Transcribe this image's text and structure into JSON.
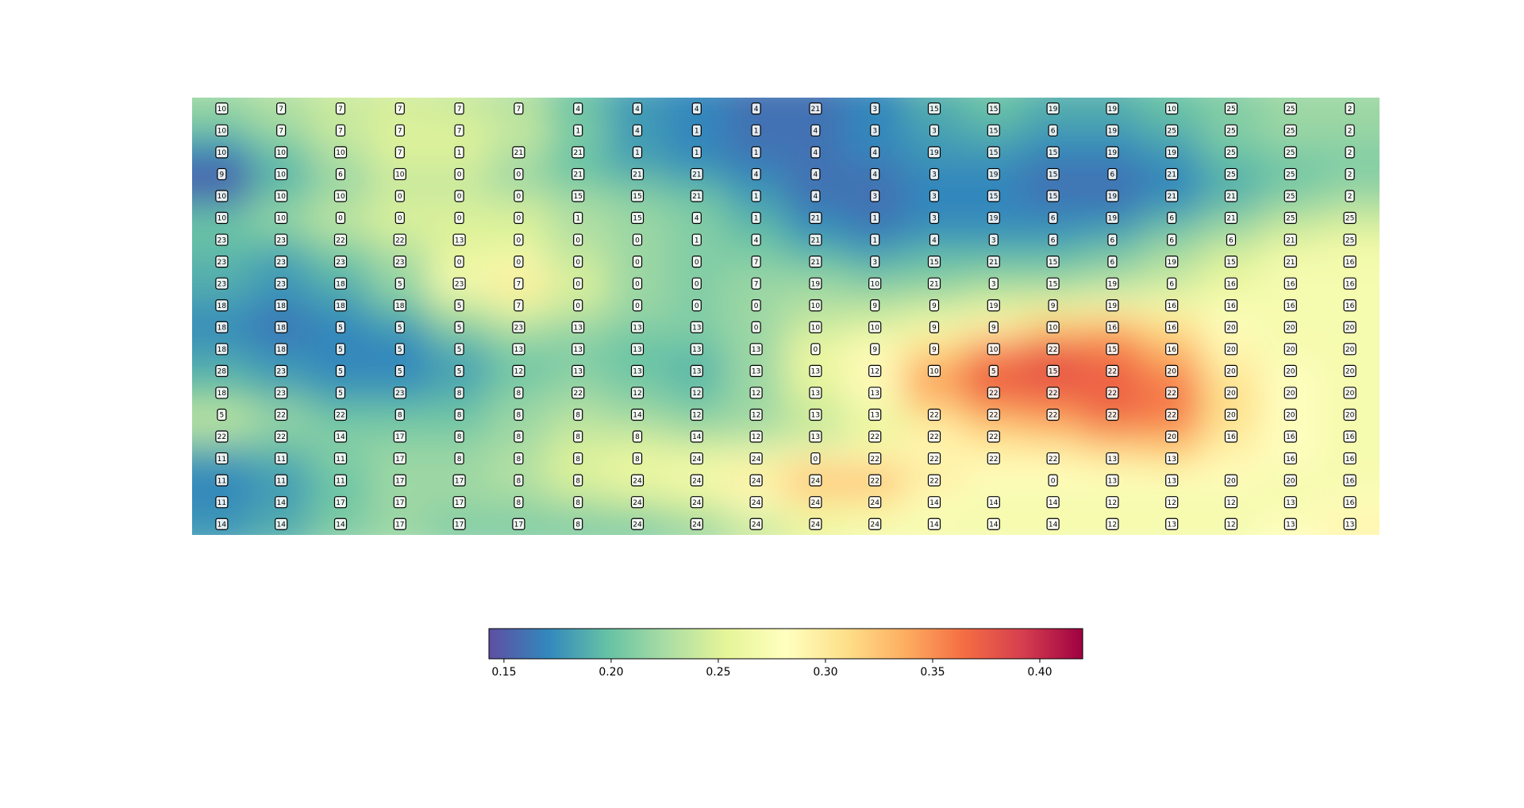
{
  "chart_data": {
    "type": "heatmap",
    "title": "",
    "xlabel": "",
    "ylabel": "",
    "grid": false,
    "cmap": "Spectral_r",
    "cmap_stops": [
      "#5e4fa2",
      "#3288bd",
      "#66c2a5",
      "#abdda4",
      "#e6f598",
      "#ffffbf",
      "#fee08b",
      "#fdae61",
      "#f46d43",
      "#d53e4f",
      "#9e0142"
    ],
    "color_range": [
      0.143,
      0.42
    ],
    "colorbar": {
      "orientation": "horizontal",
      "location": "bottom",
      "ticks": [
        0.15,
        0.2,
        0.25,
        0.3,
        0.35,
        0.4
      ],
      "tick_labels": [
        "0.15",
        "0.20",
        "0.25",
        "0.30",
        "0.35",
        "0.40"
      ]
    },
    "value_grid": [
      [
        0.22,
        0.23,
        0.24,
        0.245,
        0.24,
        0.23,
        0.2,
        0.18,
        0.17,
        0.16,
        0.16,
        0.17,
        0.19,
        0.2,
        0.19,
        0.19,
        0.2,
        0.21,
        0.22,
        0.22
      ],
      [
        0.2,
        0.22,
        0.24,
        0.25,
        0.25,
        0.24,
        0.21,
        0.18,
        0.17,
        0.16,
        0.16,
        0.17,
        0.18,
        0.19,
        0.18,
        0.18,
        0.19,
        0.21,
        0.22,
        0.22
      ],
      [
        0.17,
        0.2,
        0.23,
        0.25,
        0.25,
        0.23,
        0.2,
        0.18,
        0.17,
        0.16,
        0.16,
        0.17,
        0.18,
        0.18,
        0.17,
        0.17,
        0.18,
        0.2,
        0.21,
        0.21
      ],
      [
        0.15,
        0.19,
        0.22,
        0.24,
        0.24,
        0.22,
        0.2,
        0.19,
        0.18,
        0.17,
        0.16,
        0.16,
        0.17,
        0.17,
        0.16,
        0.16,
        0.17,
        0.19,
        0.2,
        0.21
      ],
      [
        0.16,
        0.2,
        0.22,
        0.24,
        0.24,
        0.23,
        0.22,
        0.21,
        0.2,
        0.18,
        0.16,
        0.16,
        0.17,
        0.17,
        0.16,
        0.16,
        0.17,
        0.19,
        0.21,
        0.22
      ],
      [
        0.2,
        0.22,
        0.24,
        0.25,
        0.25,
        0.25,
        0.23,
        0.22,
        0.21,
        0.19,
        0.17,
        0.16,
        0.17,
        0.17,
        0.17,
        0.17,
        0.19,
        0.21,
        0.23,
        0.24
      ],
      [
        0.2,
        0.2,
        0.22,
        0.24,
        0.25,
        0.25,
        0.23,
        0.22,
        0.21,
        0.2,
        0.18,
        0.17,
        0.18,
        0.18,
        0.18,
        0.19,
        0.21,
        0.23,
        0.25,
        0.26
      ],
      [
        0.19,
        0.18,
        0.2,
        0.22,
        0.26,
        0.27,
        0.24,
        0.22,
        0.21,
        0.21,
        0.2,
        0.19,
        0.2,
        0.2,
        0.2,
        0.21,
        0.23,
        0.25,
        0.27,
        0.27
      ],
      [
        0.19,
        0.18,
        0.19,
        0.22,
        0.27,
        0.3,
        0.25,
        0.22,
        0.21,
        0.22,
        0.22,
        0.21,
        0.21,
        0.22,
        0.22,
        0.23,
        0.24,
        0.26,
        0.27,
        0.27
      ],
      [
        0.18,
        0.17,
        0.18,
        0.2,
        0.24,
        0.26,
        0.24,
        0.22,
        0.21,
        0.22,
        0.23,
        0.23,
        0.24,
        0.25,
        0.26,
        0.27,
        0.27,
        0.27,
        0.27,
        0.27
      ],
      [
        0.17,
        0.16,
        0.17,
        0.18,
        0.21,
        0.23,
        0.22,
        0.21,
        0.21,
        0.22,
        0.24,
        0.25,
        0.27,
        0.29,
        0.32,
        0.33,
        0.31,
        0.28,
        0.27,
        0.27
      ],
      [
        0.18,
        0.17,
        0.17,
        0.17,
        0.19,
        0.21,
        0.21,
        0.2,
        0.2,
        0.22,
        0.26,
        0.28,
        0.31,
        0.35,
        0.37,
        0.36,
        0.33,
        0.29,
        0.27,
        0.27
      ],
      [
        0.19,
        0.18,
        0.17,
        0.17,
        0.18,
        0.2,
        0.21,
        0.2,
        0.19,
        0.22,
        0.26,
        0.29,
        0.34,
        0.37,
        0.38,
        0.37,
        0.35,
        0.3,
        0.28,
        0.27
      ],
      [
        0.2,
        0.19,
        0.18,
        0.18,
        0.19,
        0.21,
        0.22,
        0.21,
        0.2,
        0.22,
        0.25,
        0.28,
        0.34,
        0.37,
        0.37,
        0.37,
        0.36,
        0.31,
        0.28,
        0.27
      ],
      [
        0.24,
        0.22,
        0.2,
        0.2,
        0.2,
        0.22,
        0.23,
        0.22,
        0.21,
        0.22,
        0.24,
        0.26,
        0.31,
        0.34,
        0.35,
        0.37,
        0.36,
        0.31,
        0.28,
        0.27
      ],
      [
        0.22,
        0.21,
        0.21,
        0.21,
        0.21,
        0.22,
        0.24,
        0.24,
        0.23,
        0.23,
        0.24,
        0.26,
        0.29,
        0.31,
        0.32,
        0.34,
        0.34,
        0.3,
        0.28,
        0.27
      ],
      [
        0.18,
        0.19,
        0.21,
        0.22,
        0.22,
        0.23,
        0.25,
        0.26,
        0.26,
        0.27,
        0.29,
        0.29,
        0.29,
        0.29,
        0.29,
        0.3,
        0.31,
        0.29,
        0.28,
        0.27
      ],
      [
        0.17,
        0.18,
        0.2,
        0.22,
        0.22,
        0.23,
        0.25,
        0.26,
        0.27,
        0.3,
        0.33,
        0.33,
        0.3,
        0.28,
        0.28,
        0.28,
        0.28,
        0.28,
        0.27,
        0.27
      ],
      [
        0.17,
        0.18,
        0.2,
        0.22,
        0.22,
        0.22,
        0.23,
        0.24,
        0.25,
        0.28,
        0.3,
        0.3,
        0.28,
        0.27,
        0.27,
        0.27,
        0.27,
        0.27,
        0.27,
        0.28
      ],
      [
        0.18,
        0.19,
        0.21,
        0.22,
        0.21,
        0.21,
        0.21,
        0.21,
        0.22,
        0.24,
        0.26,
        0.27,
        0.27,
        0.27,
        0.27,
        0.27,
        0.27,
        0.27,
        0.28,
        0.29
      ]
    ],
    "cell_labels": [
      [
        "10",
        "7",
        "7",
        "7",
        "7",
        "7",
        "4",
        "4",
        "4",
        "4",
        "21",
        "3",
        "15",
        "15",
        "19",
        "19",
        "10",
        "25",
        "25",
        "2"
      ],
      [
        "10",
        "7",
        "7",
        "7",
        "7",
        "",
        "1",
        "4",
        "1",
        "1",
        "4",
        "3",
        "3",
        "15",
        "6",
        "19",
        "25",
        "25",
        "25",
        "2"
      ],
      [
        "10",
        "10",
        "10",
        "7",
        "1",
        "21",
        "21",
        "1",
        "1",
        "1",
        "4",
        "4",
        "19",
        "15",
        "15",
        "19",
        "19",
        "25",
        "25",
        "2"
      ],
      [
        "9",
        "10",
        "6",
        "10",
        "0",
        "0",
        "21",
        "21",
        "21",
        "4",
        "4",
        "4",
        "3",
        "19",
        "15",
        "6",
        "21",
        "25",
        "25",
        "2"
      ],
      [
        "10",
        "10",
        "10",
        "0",
        "0",
        "0",
        "15",
        "15",
        "21",
        "1",
        "4",
        "3",
        "3",
        "15",
        "15",
        "19",
        "21",
        "21",
        "25",
        "2"
      ],
      [
        "10",
        "10",
        "0",
        "0",
        "0",
        "0",
        "1",
        "15",
        "4",
        "1",
        "21",
        "1",
        "3",
        "19",
        "6",
        "19",
        "6",
        "21",
        "25",
        "25"
      ],
      [
        "23",
        "23",
        "22",
        "22",
        "13",
        "0",
        "0",
        "0",
        "1",
        "4",
        "21",
        "1",
        "4",
        "3",
        "6",
        "6",
        "6",
        "6",
        "21",
        "25"
      ],
      [
        "23",
        "23",
        "23",
        "23",
        "0",
        "0",
        "0",
        "0",
        "0",
        "7",
        "21",
        "3",
        "15",
        "21",
        "15",
        "6",
        "19",
        "15",
        "21",
        "16"
      ],
      [
        "23",
        "23",
        "18",
        "5",
        "23",
        "7",
        "0",
        "0",
        "0",
        "7",
        "19",
        "10",
        "21",
        "3",
        "15",
        "19",
        "6",
        "16",
        "16",
        "16"
      ],
      [
        "18",
        "18",
        "18",
        "18",
        "5",
        "7",
        "0",
        "0",
        "0",
        "0",
        "10",
        "9",
        "9",
        "19",
        "9",
        "19",
        "16",
        "16",
        "16",
        "16"
      ],
      [
        "18",
        "18",
        "5",
        "5",
        "5",
        "23",
        "13",
        "13",
        "13",
        "0",
        "10",
        "10",
        "9",
        "9",
        "10",
        "16",
        "16",
        "20",
        "20",
        "20"
      ],
      [
        "18",
        "18",
        "5",
        "5",
        "5",
        "13",
        "13",
        "13",
        "13",
        "13",
        "0",
        "9",
        "9",
        "10",
        "22",
        "15",
        "16",
        "20",
        "20",
        "20"
      ],
      [
        "28",
        "23",
        "5",
        "5",
        "5",
        "12",
        "13",
        "13",
        "13",
        "13",
        "13",
        "12",
        "10",
        "5",
        "15",
        "22",
        "20",
        "20",
        "20",
        "20"
      ],
      [
        "18",
        "23",
        "5",
        "23",
        "8",
        "8",
        "22",
        "12",
        "12",
        "12",
        "13",
        "13",
        "",
        "22",
        "22",
        "22",
        "22",
        "20",
        "20",
        "20"
      ],
      [
        "5",
        "22",
        "22",
        "8",
        "8",
        "8",
        "8",
        "14",
        "12",
        "12",
        "13",
        "13",
        "22",
        "22",
        "22",
        "22",
        "22",
        "20",
        "20",
        "20"
      ],
      [
        "22",
        "22",
        "14",
        "17",
        "8",
        "8",
        "8",
        "8",
        "14",
        "12",
        "13",
        "22",
        "22",
        "22",
        "",
        "",
        "20",
        "16",
        "16",
        "16"
      ],
      [
        "11",
        "11",
        "11",
        "17",
        "8",
        "8",
        "8",
        "8",
        "24",
        "24",
        "0",
        "22",
        "22",
        "22",
        "22",
        "13",
        "13",
        "",
        "16",
        "16"
      ],
      [
        "11",
        "11",
        "11",
        "17",
        "17",
        "8",
        "8",
        "24",
        "24",
        "24",
        "24",
        "22",
        "22",
        "",
        "0",
        "13",
        "13",
        "20",
        "20",
        "16"
      ],
      [
        "11",
        "14",
        "17",
        "17",
        "17",
        "8",
        "8",
        "24",
        "24",
        "24",
        "24",
        "24",
        "14",
        "14",
        "14",
        "12",
        "12",
        "12",
        "13",
        "16"
      ],
      [
        "14",
        "14",
        "14",
        "17",
        "17",
        "17",
        "8",
        "24",
        "24",
        "24",
        "24",
        "24",
        "14",
        "14",
        "14",
        "12",
        "13",
        "12",
        "13",
        "13"
      ]
    ]
  }
}
